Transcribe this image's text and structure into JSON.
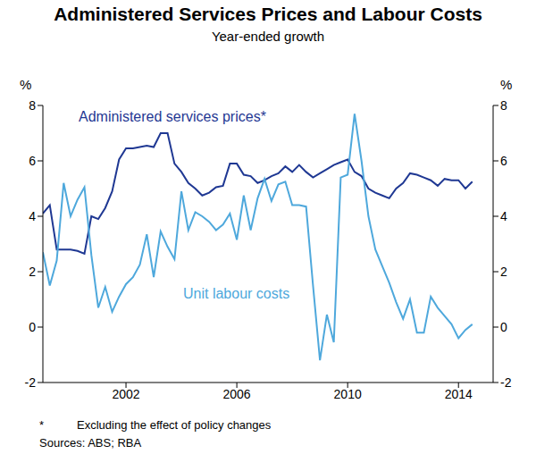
{
  "chart_data": {
    "type": "line",
    "title": "Administered Services Prices and Labour Costs",
    "subtitle": "Year-ended growth",
    "ylabel": "%",
    "y2label": "%",
    "footnote": {
      "mark": "*",
      "text": "Excluding the effect of policy changes"
    },
    "source": "Sources: ABS; RBA",
    "x": [
      1999,
      1999.25,
      1999.5,
      1999.75,
      2000,
      2000.25,
      2000.5,
      2000.75,
      2001,
      2001.25,
      2001.5,
      2001.75,
      2002,
      2002.25,
      2002.5,
      2002.75,
      2003,
      2003.25,
      2003.5,
      2003.75,
      2004,
      2004.25,
      2004.5,
      2004.75,
      2005,
      2005.25,
      2005.5,
      2005.75,
      2006,
      2006.25,
      2006.5,
      2006.75,
      2007,
      2007.25,
      2007.5,
      2007.75,
      2008,
      2008.25,
      2008.5,
      2008.75,
      2009,
      2009.25,
      2009.5,
      2009.75,
      2010,
      2010.25,
      2010.5,
      2010.75,
      2011,
      2011.25,
      2011.5,
      2011.75,
      2012,
      2012.25,
      2012.5,
      2012.75,
      2013,
      2013.25,
      2013.5,
      2013.75,
      2014,
      2014.25,
      2014.5
    ],
    "series": [
      {
        "name": "Administered services prices*",
        "color": "#1f3893",
        "marker": "none",
        "values": [
          4.1,
          4.4,
          2.8,
          2.8,
          2.8,
          2.75,
          2.65,
          4.0,
          3.9,
          4.3,
          4.9,
          6.05,
          6.45,
          6.45,
          6.5,
          6.55,
          6.5,
          7.0,
          7.0,
          5.9,
          5.6,
          5.2,
          5.0,
          4.75,
          4.85,
          5.05,
          5.1,
          5.9,
          5.9,
          5.5,
          5.45,
          5.2,
          5.3,
          5.45,
          5.55,
          5.8,
          5.6,
          5.85,
          5.6,
          5.4,
          5.55,
          5.7,
          5.85,
          5.95,
          6.05,
          5.6,
          5.45,
          5.0,
          4.85,
          4.75,
          4.65,
          5.0,
          5.2,
          5.55,
          5.5,
          5.4,
          5.3,
          5.1,
          5.35,
          5.3,
          5.3,
          5.0,
          5.25
        ]
      },
      {
        "name": "Unit labour costs",
        "color": "#4ea8dc",
        "marker": "none",
        "values": [
          2.7,
          1.5,
          2.4,
          5.2,
          4.0,
          4.6,
          5.05,
          2.6,
          0.7,
          1.45,
          0.55,
          1.1,
          1.55,
          1.8,
          2.25,
          3.35,
          1.8,
          3.45,
          2.9,
          2.45,
          4.9,
          3.5,
          4.15,
          4.0,
          3.8,
          3.5,
          3.7,
          4.1,
          3.15,
          4.75,
          3.5,
          4.65,
          5.35,
          4.55,
          5.15,
          5.25,
          4.4,
          4.4,
          4.35,
          1.5,
          -1.2,
          0.45,
          -0.55,
          5.4,
          5.5,
          7.7,
          6.0,
          4.0,
          2.8,
          2.2,
          1.6,
          0.9,
          0.3,
          1.0,
          -0.2,
          -0.2,
          1.1,
          0.7,
          0.4,
          0.1,
          -0.4,
          -0.1,
          0.1
        ]
      }
    ],
    "xlim": [
      1999,
      2015.25
    ],
    "xticks": [
      2002,
      2006,
      2010,
      2014
    ],
    "ylim": [
      -2,
      8
    ],
    "yticks": [
      -2,
      0,
      2,
      4,
      6,
      8
    ],
    "y2lim": [
      -2,
      8
    ],
    "y2ticks": [
      -2,
      0,
      2,
      4,
      6,
      8
    ],
    "grid": false
  }
}
